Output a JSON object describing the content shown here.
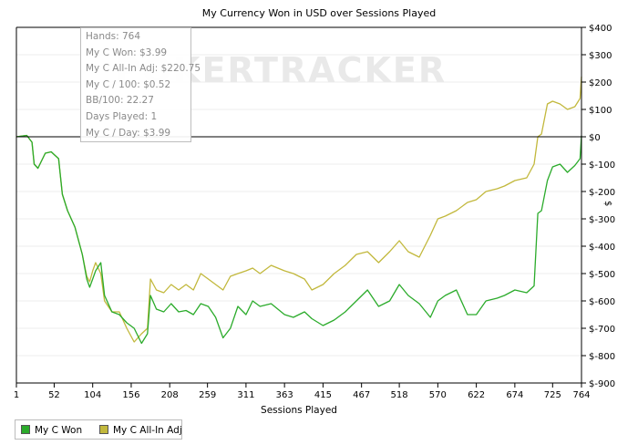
{
  "chart_data": {
    "type": "line",
    "title": "My Currency Won in USD over Sessions Played",
    "xlabel": "Sessions Played",
    "ylabel": "$",
    "watermark": "POKERTRACKER",
    "xlim": [
      1,
      764
    ],
    "ylim": [
      -900,
      400
    ],
    "x_ticks": [
      "1",
      "52",
      "104",
      "156",
      "208",
      "259",
      "311",
      "363",
      "415",
      "467",
      "518",
      "570",
      "622",
      "674",
      "725",
      "764"
    ],
    "y_ticks": [
      {
        "value": 400,
        "label": "$400"
      },
      {
        "value": 300,
        "label": "$300"
      },
      {
        "value": 200,
        "label": "$200"
      },
      {
        "value": 100,
        "label": "$100"
      },
      {
        "value": 0,
        "label": "$0"
      },
      {
        "value": -100,
        "label": "$-100"
      },
      {
        "value": -200,
        "label": "$-200"
      },
      {
        "value": -300,
        "label": "$-300"
      },
      {
        "value": -400,
        "label": "$-400"
      },
      {
        "value": -500,
        "label": "$-500"
      },
      {
        "value": -600,
        "label": "$-600"
      },
      {
        "value": -700,
        "label": "$-700"
      },
      {
        "value": -800,
        "label": "$-800"
      },
      {
        "value": -900,
        "label": "$-900"
      }
    ],
    "grid": true,
    "legend_position": "bottom-left",
    "series": [
      {
        "name": "My C Won",
        "color": "#2bab2b",
        "points": [
          [
            1,
            0
          ],
          [
            15,
            5
          ],
          [
            22,
            -20
          ],
          [
            25,
            -100
          ],
          [
            30,
            -115
          ],
          [
            40,
            -60
          ],
          [
            48,
            -55
          ],
          [
            52,
            -65
          ],
          [
            58,
            -80
          ],
          [
            63,
            -210
          ],
          [
            70,
            -270
          ],
          [
            80,
            -330
          ],
          [
            90,
            -430
          ],
          [
            96,
            -520
          ],
          [
            100,
            -550
          ],
          [
            104,
            -520
          ],
          [
            108,
            -490
          ],
          [
            115,
            -460
          ],
          [
            120,
            -580
          ],
          [
            130,
            -640
          ],
          [
            140,
            -650
          ],
          [
            150,
            -680
          ],
          [
            160,
            -700
          ],
          [
            170,
            -755
          ],
          [
            178,
            -720
          ],
          [
            182,
            -580
          ],
          [
            190,
            -630
          ],
          [
            200,
            -640
          ],
          [
            210,
            -610
          ],
          [
            220,
            -640
          ],
          [
            230,
            -635
          ],
          [
            240,
            -650
          ],
          [
            250,
            -610
          ],
          [
            260,
            -620
          ],
          [
            270,
            -660
          ],
          [
            280,
            -735
          ],
          [
            290,
            -700
          ],
          [
            300,
            -620
          ],
          [
            311,
            -650
          ],
          [
            320,
            -600
          ],
          [
            330,
            -620
          ],
          [
            345,
            -610
          ],
          [
            363,
            -650
          ],
          [
            375,
            -660
          ],
          [
            390,
            -640
          ],
          [
            400,
            -665
          ],
          [
            415,
            -690
          ],
          [
            430,
            -670
          ],
          [
            445,
            -640
          ],
          [
            460,
            -600
          ],
          [
            475,
            -560
          ],
          [
            490,
            -620
          ],
          [
            505,
            -600
          ],
          [
            518,
            -540
          ],
          [
            530,
            -580
          ],
          [
            545,
            -610
          ],
          [
            560,
            -660
          ],
          [
            570,
            -600
          ],
          [
            580,
            -580
          ],
          [
            595,
            -560
          ],
          [
            610,
            -650
          ],
          [
            622,
            -650
          ],
          [
            635,
            -600
          ],
          [
            650,
            -590
          ],
          [
            660,
            -580
          ],
          [
            674,
            -560
          ],
          [
            690,
            -570
          ],
          [
            700,
            -545
          ],
          [
            705,
            -280
          ],
          [
            710,
            -270
          ],
          [
            718,
            -160
          ],
          [
            725,
            -110
          ],
          [
            735,
            -100
          ],
          [
            745,
            -130
          ],
          [
            755,
            -105
          ],
          [
            762,
            -80
          ],
          [
            764,
            4
          ]
        ]
      },
      {
        "name": "My C All-In Adj",
        "color": "#c2b83c",
        "points": [
          [
            1,
            0
          ],
          [
            15,
            5
          ],
          [
            22,
            -20
          ],
          [
            25,
            -100
          ],
          [
            30,
            -115
          ],
          [
            40,
            -60
          ],
          [
            48,
            -55
          ],
          [
            52,
            -65
          ],
          [
            58,
            -80
          ],
          [
            63,
            -210
          ],
          [
            70,
            -270
          ],
          [
            80,
            -330
          ],
          [
            90,
            -430
          ],
          [
            96,
            -510
          ],
          [
            100,
            -530
          ],
          [
            104,
            -490
          ],
          [
            108,
            -460
          ],
          [
            115,
            -500
          ],
          [
            120,
            -600
          ],
          [
            130,
            -640
          ],
          [
            140,
            -640
          ],
          [
            150,
            -700
          ],
          [
            160,
            -750
          ],
          [
            170,
            -720
          ],
          [
            178,
            -700
          ],
          [
            182,
            -520
          ],
          [
            190,
            -560
          ],
          [
            200,
            -570
          ],
          [
            210,
            -540
          ],
          [
            220,
            -560
          ],
          [
            230,
            -540
          ],
          [
            240,
            -560
          ],
          [
            250,
            -500
          ],
          [
            260,
            -520
          ],
          [
            270,
            -540
          ],
          [
            280,
            -560
          ],
          [
            290,
            -510
          ],
          [
            300,
            -500
          ],
          [
            311,
            -490
          ],
          [
            320,
            -480
          ],
          [
            330,
            -500
          ],
          [
            345,
            -470
          ],
          [
            363,
            -490
          ],
          [
            375,
            -500
          ],
          [
            390,
            -520
          ],
          [
            400,
            -560
          ],
          [
            415,
            -540
          ],
          [
            430,
            -500
          ],
          [
            445,
            -470
          ],
          [
            460,
            -430
          ],
          [
            475,
            -420
          ],
          [
            490,
            -460
          ],
          [
            505,
            -420
          ],
          [
            518,
            -380
          ],
          [
            530,
            -420
          ],
          [
            545,
            -440
          ],
          [
            560,
            -360
          ],
          [
            570,
            -300
          ],
          [
            580,
            -290
          ],
          [
            595,
            -270
          ],
          [
            610,
            -240
          ],
          [
            622,
            -230
          ],
          [
            635,
            -200
          ],
          [
            650,
            -190
          ],
          [
            660,
            -180
          ],
          [
            674,
            -160
          ],
          [
            690,
            -150
          ],
          [
            700,
            -100
          ],
          [
            705,
            0
          ],
          [
            710,
            10
          ],
          [
            718,
            120
          ],
          [
            725,
            130
          ],
          [
            735,
            120
          ],
          [
            745,
            100
          ],
          [
            755,
            110
          ],
          [
            762,
            140
          ],
          [
            764,
            220
          ]
        ]
      }
    ]
  },
  "stats": {
    "hands": "Hands: 764",
    "won": "My C Won: $3.99",
    "allin_adj": "My C All-In Adj: $220.75",
    "per100": "My C / 100: $0.52",
    "bb100": "BB/100: 22.27",
    "days_played": "Days Played: 1",
    "per_day": "My C / Day: $3.99"
  }
}
